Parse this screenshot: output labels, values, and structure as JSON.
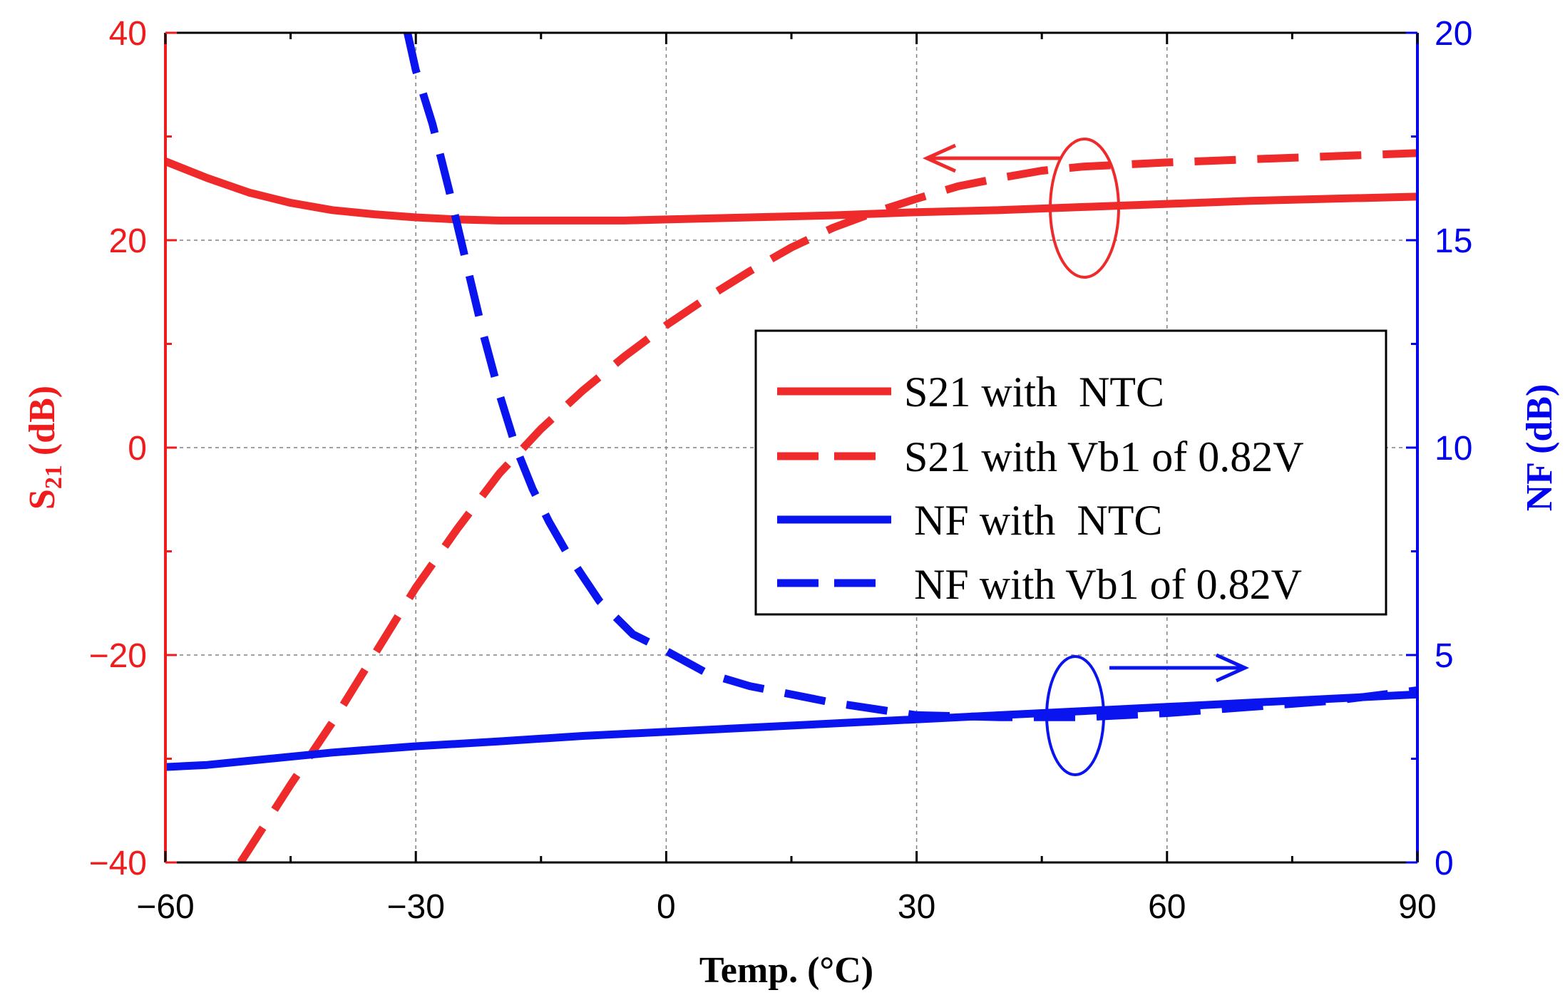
{
  "chart_data": {
    "type": "line",
    "xlabel": "Temp. (°C)",
    "ylabel_left": {
      "main": "S",
      "sub": "21",
      "rest": " (dB)"
    },
    "ylabel_right": "NF (dB)",
    "xlim": [
      -60,
      90
    ],
    "ylim_left": [
      -40,
      40
    ],
    "ylim_right": [
      0,
      20
    ],
    "x_ticks": [
      -60,
      -30,
      0,
      30,
      60,
      90
    ],
    "x_tick_labels": [
      "−60",
      "−30",
      "0",
      "30",
      "60",
      "90"
    ],
    "y_left_ticks": [
      -40,
      -20,
      0,
      20,
      40
    ],
    "y_left_tick_labels": [
      "−40",
      "−20",
      "0",
      "20",
      "40"
    ],
    "y_right_ticks": [
      0,
      5,
      10,
      15,
      20
    ],
    "y_right_tick_labels": [
      "0",
      "5",
      "10",
      "15",
      "20"
    ],
    "grid": true,
    "colors": {
      "s21": "#ee2a2a",
      "nf": "#0a14ee",
      "left_axis": "#ee1c1c",
      "right_axis": "#0000ee"
    },
    "series": [
      {
        "name": "S21 with  NTC",
        "axis": "left",
        "style": "solid",
        "color": "#ee2a2a",
        "x": [
          -60,
          -55,
          -50,
          -45,
          -40,
          -35,
          -30,
          -25,
          -20,
          -15,
          -10,
          -5,
          0,
          10,
          20,
          30,
          40,
          50,
          60,
          70,
          80,
          90
        ],
        "y": [
          27.6,
          26.0,
          24.6,
          23.6,
          22.9,
          22.5,
          22.2,
          22.0,
          21.9,
          21.9,
          21.9,
          21.9,
          22.0,
          22.2,
          22.4,
          22.7,
          22.9,
          23.2,
          23.5,
          23.8,
          24.0,
          24.2
        ]
      },
      {
        "name": "S21 with Vb1 of 0.82V",
        "axis": "left",
        "style": "dashed",
        "color": "#ee2a2a",
        "x": [
          -51,
          -45,
          -40,
          -35,
          -30,
          -25,
          -20,
          -15,
          -10,
          -5,
          0,
          5,
          10,
          15,
          20,
          25,
          30,
          35,
          40,
          45,
          50,
          60,
          70,
          80,
          90
        ],
        "y": [
          -40,
          -32.5,
          -26.5,
          -20,
          -13.5,
          -7.8,
          -2.5,
          1.8,
          5.5,
          8.8,
          11.8,
          14.5,
          17.0,
          19.3,
          21.2,
          22.7,
          24.0,
          25.2,
          26.0,
          26.7,
          27.1,
          27.5,
          27.8,
          28.1,
          28.4
        ]
      },
      {
        "name": "NF with  NTC",
        "axis": "right",
        "style": "solid",
        "color": "#0a14ee",
        "x": [
          -60,
          -55,
          -50,
          -40,
          -30,
          -20,
          -10,
          0,
          10,
          20,
          30,
          40,
          50,
          60,
          70,
          80,
          90
        ],
        "y": [
          2.3,
          2.35,
          2.45,
          2.65,
          2.8,
          2.92,
          3.05,
          3.15,
          3.25,
          3.35,
          3.45,
          3.55,
          3.65,
          3.75,
          3.85,
          3.95,
          4.05
        ]
      },
      {
        "name": "NF with Vb1 of 0.82V",
        "axis": "right",
        "style": "dashed",
        "color": "#0a14ee",
        "x": [
          -31,
          -30,
          -28,
          -26,
          -24,
          -22,
          -20,
          -18,
          -16,
          -14,
          -12,
          -10,
          -8,
          -6,
          -4,
          -2,
          0,
          5,
          10,
          20,
          30,
          40,
          50,
          60,
          70,
          80,
          90
        ],
        "y": [
          20,
          19.1,
          17.8,
          16.2,
          14.5,
          12.8,
          11.3,
          10.0,
          9.0,
          8.2,
          7.5,
          6.9,
          6.3,
          5.9,
          5.5,
          5.3,
          5.1,
          4.55,
          4.25,
          3.85,
          3.55,
          3.5,
          3.5,
          3.6,
          3.75,
          3.9,
          4.15
        ]
      }
    ],
    "legend": {
      "position": "center-right",
      "entries": [
        "S21 with  NTC",
        "S21 with Vb1 of 0.82V",
        "NF with  NTC",
        "NF with Vb1 of 0.82V"
      ]
    },
    "annotations": [
      {
        "type": "ellipse-arrow",
        "target": "S21 curves",
        "direction": "left"
      },
      {
        "type": "ellipse-arrow",
        "target": "NF curves",
        "direction": "right"
      }
    ]
  }
}
